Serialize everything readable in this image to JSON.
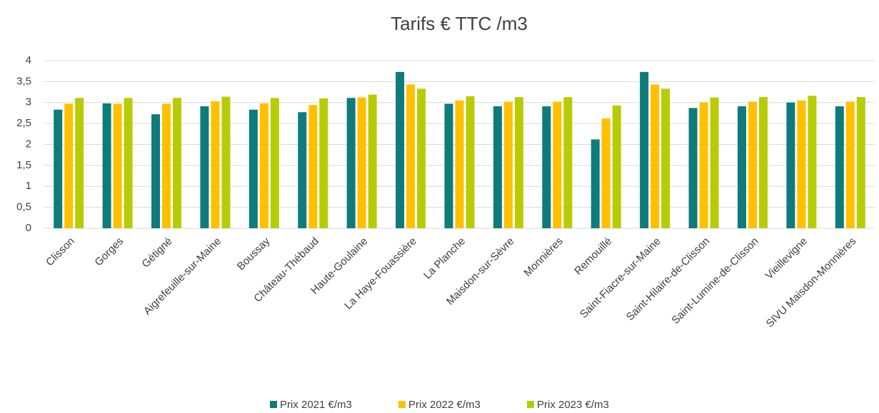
{
  "chart_data": {
    "type": "bar",
    "title": "Tarifs € TTC /m3",
    "categories": [
      "Clisson",
      "Gorges",
      "Gétigné",
      "Aigrefeuille-sur-Maine",
      "Boussay",
      "Château-Thébaud",
      "Haute-Goulaine",
      "La Haye-Fouassière",
      "La Planche",
      "Maisdon-sur-Sèvre",
      "Monnières",
      "Remouillé",
      "Saint-Fiacre-sur-Maine",
      "Saint-Hilaire-de-Clisson",
      "Saint-Lumine-de-Clisson",
      "Vieillevigne",
      "SIVU Maisdon-Monnières"
    ],
    "series": [
      {
        "name": "Prix 2021 €/m3",
        "color": "#0f7b7b",
        "values": [
          2.83,
          2.98,
          2.72,
          2.91,
          2.83,
          2.77,
          3.11,
          3.73,
          2.97,
          2.91,
          2.91,
          2.12,
          3.73,
          2.87,
          2.91,
          3.0,
          2.91
        ]
      },
      {
        "name": "Prix 2022 €/m3",
        "color": "#ffc000",
        "values": [
          2.97,
          2.97,
          2.97,
          3.03,
          2.98,
          2.94,
          3.12,
          3.43,
          3.05,
          3.02,
          3.02,
          2.62,
          3.43,
          3.0,
          3.02,
          3.05,
          3.02
        ]
      },
      {
        "name": "Prix 2023 €/m3",
        "color": "#b8cc06",
        "values": [
          3.11,
          3.11,
          3.11,
          3.14,
          3.11,
          3.1,
          3.19,
          3.33,
          3.15,
          3.13,
          3.13,
          2.93,
          3.33,
          3.12,
          3.13,
          3.16,
          3.13
        ]
      }
    ],
    "ylim": [
      0,
      4
    ],
    "yticks": [
      0,
      {
        "value": 0.5,
        "label": "0,5"
      },
      1,
      {
        "value": 1.5,
        "label": "1,5"
      },
      2,
      {
        "value": 2.5,
        "label": "2,5"
      },
      3,
      {
        "value": 3.5,
        "label": "3,5"
      },
      4
    ],
    "grid": true,
    "legend": "bottom"
  }
}
